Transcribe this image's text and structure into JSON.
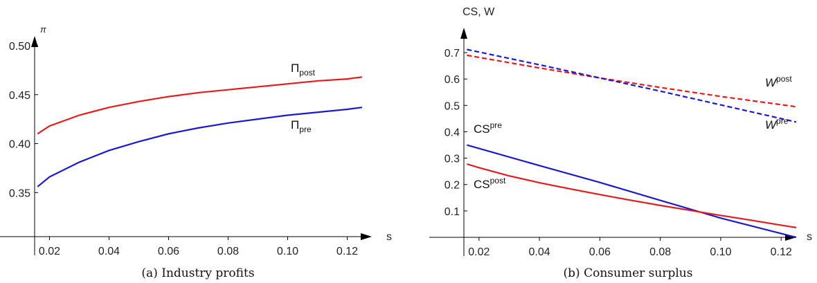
{
  "colors": {
    "red": "#e41a1c",
    "blue": "#1a1acc",
    "axis": "#000000"
  },
  "chart_data": [
    {
      "type": "line",
      "caption": "(a) Industry profits",
      "xlabel": "s",
      "ylabel": "π",
      "xlim": [
        0.015,
        0.125
      ],
      "ylim": [
        0.305,
        0.5
      ],
      "x_ticks": [
        "0.02",
        "0.04",
        "0.06",
        "0.08",
        "0.10",
        "0.12"
      ],
      "y_ticks": [
        "0.35",
        "0.40",
        "0.45",
        "0.50"
      ],
      "grid": false,
      "series": [
        {
          "name": "Π",
          "label_sub": "post",
          "color": "#e41a1c",
          "dashed": false,
          "x": [
            0.016,
            0.02,
            0.03,
            0.04,
            0.05,
            0.06,
            0.07,
            0.08,
            0.09,
            0.1,
            0.11,
            0.12,
            0.125
          ],
          "y": [
            0.41,
            0.418,
            0.429,
            0.437,
            0.443,
            0.448,
            0.452,
            0.455,
            0.458,
            0.461,
            0.464,
            0.466,
            0.468
          ]
        },
        {
          "name": "Π",
          "label_sub": "pre",
          "color": "#1a1acc",
          "dashed": false,
          "x": [
            0.016,
            0.02,
            0.03,
            0.04,
            0.05,
            0.06,
            0.07,
            0.08,
            0.09,
            0.1,
            0.11,
            0.12,
            0.125
          ],
          "y": [
            0.356,
            0.366,
            0.381,
            0.393,
            0.402,
            0.41,
            0.416,
            0.421,
            0.425,
            0.429,
            0.432,
            0.435,
            0.437
          ]
        }
      ]
    },
    {
      "type": "line",
      "caption": "(b) Consumer surplus",
      "xlabel": "s",
      "ylabel": "CS, W",
      "xlim": [
        0.015,
        0.125
      ],
      "ylim": [
        0,
        0.75
      ],
      "x_ticks": [
        "0.02",
        "0.04",
        "0.06",
        "0.08",
        "0.10",
        "0.12"
      ],
      "y_ticks": [
        "0.1",
        "0.2",
        "0.3",
        "0.4",
        "0.5",
        "0.6",
        "0.7"
      ],
      "grid": false,
      "series": [
        {
          "name": "CS",
          "label_sup": "pre",
          "color": "#1a1acc",
          "dashed": false,
          "x": [
            0.016,
            0.04,
            0.06,
            0.08,
            0.1,
            0.125
          ],
          "y": [
            0.35,
            0.272,
            0.208,
            0.14,
            0.073,
            0.0
          ]
        },
        {
          "name": "CS",
          "label_sup": "post",
          "color": "#e41a1c",
          "dashed": false,
          "x": [
            0.016,
            0.02,
            0.03,
            0.04,
            0.05,
            0.06,
            0.07,
            0.08,
            0.09,
            0.1,
            0.11,
            0.12,
            0.125
          ],
          "y": [
            0.278,
            0.264,
            0.233,
            0.207,
            0.184,
            0.162,
            0.141,
            0.121,
            0.102,
            0.083,
            0.065,
            0.046,
            0.037
          ]
        },
        {
          "name": "W",
          "label_sup": "post",
          "color": "#e41a1c",
          "dashed": true,
          "x": [
            0.016,
            0.04,
            0.06,
            0.08,
            0.1,
            0.125
          ],
          "y": [
            0.69,
            0.642,
            0.604,
            0.568,
            0.534,
            0.495
          ]
        },
        {
          "name": "W",
          "label_sup": "pre",
          "color": "#1a1acc",
          "dashed": true,
          "x": [
            0.016,
            0.04,
            0.06,
            0.08,
            0.1,
            0.125
          ],
          "y": [
            0.712,
            0.654,
            0.604,
            0.554,
            0.502,
            0.437
          ]
        }
      ]
    }
  ]
}
